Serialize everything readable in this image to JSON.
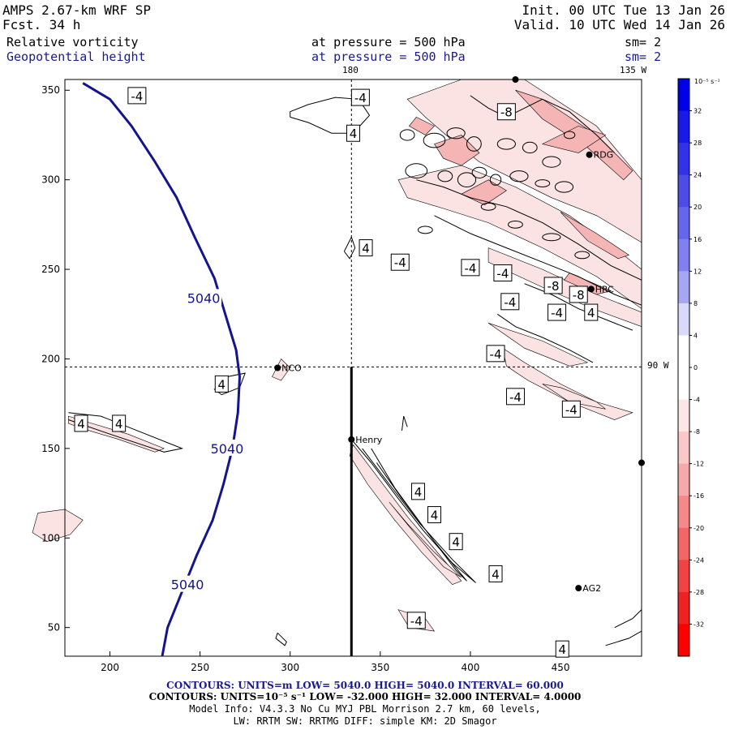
{
  "header": {
    "title": "AMPS 2.67-km WRF SP",
    "forecast": "Fcst.   34 h",
    "init": "Init. 00 UTC Tue 13 Jan 26",
    "valid": "Valid. 10 UTC Wed 14 Jan 26",
    "field1_name": "Relative vorticity",
    "field1_level": "at pressure =  500 hPa",
    "field1_smooth": "sm= 2",
    "field2_name": "Geopotential height",
    "field2_level": "at pressure =  500 hPa",
    "field2_smooth": "sm= 2"
  },
  "map_labels": {
    "lon_180": "180",
    "lon_135w": "135 W",
    "lon_90w": "90 W"
  },
  "colors": {
    "height_contour": "#14148c",
    "vort_line": "#000000",
    "neg_fill_light": "#fbe3e3",
    "neg_fill_mid": "#f5b5b5"
  },
  "chart_data": {
    "type": "contour",
    "x_ticks": [
      200,
      250,
      300,
      350,
      400,
      450
    ],
    "y_ticks": [
      50,
      100,
      150,
      200,
      250,
      300,
      350
    ],
    "xlim": [
      175,
      495
    ],
    "ylim": [
      34,
      356
    ],
    "height_contour": {
      "value": 5040,
      "labels": [
        "5040",
        "5040",
        "5040"
      ],
      "points": [
        [
          185,
          354
        ],
        [
          200,
          345
        ],
        [
          212,
          330
        ],
        [
          225,
          310
        ],
        [
          237,
          290
        ],
        [
          247,
          268
        ],
        [
          258,
          245
        ],
        [
          264,
          225
        ],
        [
          270,
          205
        ],
        [
          272,
          190
        ],
        [
          271,
          170
        ],
        [
          268,
          150
        ],
        [
          263,
          130
        ],
        [
          257,
          110
        ],
        [
          248,
          90
        ],
        [
          240,
          70
        ],
        [
          232,
          50
        ],
        [
          229,
          34
        ]
      ]
    },
    "stations": [
      {
        "name": "NCO",
        "x": 293,
        "y": 195
      },
      {
        "name": "Henry",
        "x": 334,
        "y": 155
      },
      {
        "name": "RDG",
        "x": 466,
        "y": 314
      },
      {
        "name": "HRC",
        "x": 467,
        "y": 239
      },
      {
        "name": "AG2",
        "x": 460,
        "y": 72
      }
    ],
    "vorticity_labels": [
      {
        "text": "-4",
        "x": 215,
        "y": 347
      },
      {
        "text": "-4",
        "x": 339,
        "y": 346
      },
      {
        "text": "4",
        "x": 335,
        "y": 326
      },
      {
        "text": "-8",
        "x": 420,
        "y": 338
      },
      {
        "text": "4",
        "x": 342,
        "y": 262
      },
      {
        "text": "-4",
        "x": 361,
        "y": 254
      },
      {
        "text": "-4",
        "x": 400,
        "y": 251
      },
      {
        "text": "-4",
        "x": 418,
        "y": 248
      },
      {
        "text": "-8",
        "x": 446,
        "y": 241
      },
      {
        "text": "-8",
        "x": 460,
        "y": 236
      },
      {
        "text": "-4",
        "x": 422,
        "y": 232
      },
      {
        "text": "-4",
        "x": 448,
        "y": 226
      },
      {
        "text": "4",
        "x": 467,
        "y": 226
      },
      {
        "text": "-4",
        "x": 414,
        "y": 203
      },
      {
        "text": "4",
        "x": 262,
        "y": 186
      },
      {
        "text": "-4",
        "x": 425,
        "y": 179
      },
      {
        "text": "-4",
        "x": 456,
        "y": 172
      },
      {
        "text": "4",
        "x": 184,
        "y": 164
      },
      {
        "text": "4",
        "x": 205,
        "y": 164
      },
      {
        "text": "4",
        "x": 371,
        "y": 126
      },
      {
        "text": "4",
        "x": 380,
        "y": 113
      },
      {
        "text": "4",
        "x": 392,
        "y": 98
      },
      {
        "text": "4",
        "x": 414,
        "y": 80
      },
      {
        "text": "-4",
        "x": 370,
        "y": 54
      },
      {
        "text": "4",
        "x": 451,
        "y": 38
      }
    ],
    "colorbar": {
      "units": "10⁻⁵ s⁻¹",
      "levels": [
        32,
        28,
        24,
        20,
        16,
        12,
        8,
        4,
        0,
        -4,
        -8,
        -12,
        -16,
        -20,
        -24,
        -28,
        -32
      ],
      "colors": [
        "#0000e6",
        "#1a1ae6",
        "#3333e6",
        "#4d4de6",
        "#6666eb",
        "#8080f0",
        "#a6a6f5",
        "#d9d9fc",
        "#ffffff",
        "#ffffff",
        "#fde6e6",
        "#fac8c8",
        "#f7a8a8",
        "#f58888",
        "#f26666",
        "#f04444",
        "#ee2222",
        "#ff0000"
      ]
    }
  },
  "footer": {
    "contours_height": "CONTOURS:  UNITS=m  LOW=  5040.0        HIGH=  5040.0        INTERVAL=   60.000",
    "contours_vort": "CONTOURS:  UNITS=10⁻⁵ s⁻¹  LOW=  -32.000       HIGH=  32.000       INTERVAL=   4.0000",
    "model_info_1": "Model Info: V4.3.3    No Cu    MYJ PBL  Morrison          2.7 km,  60 levels,",
    "model_info_2": "LW: RRTM SW: RRTMG    DIFF: simple KM: 2D Smagor"
  }
}
